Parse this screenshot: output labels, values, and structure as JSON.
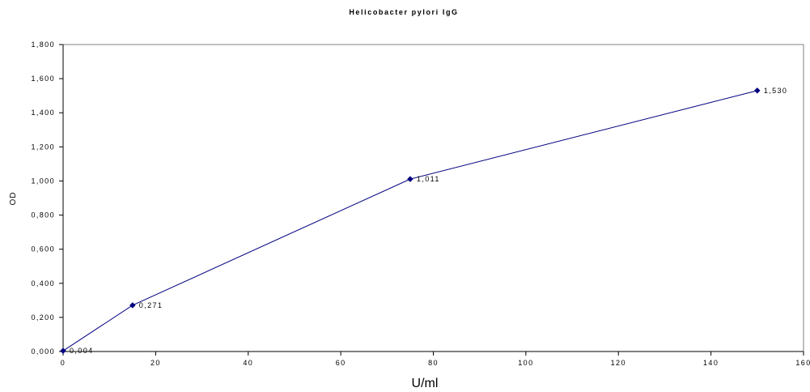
{
  "chart_data": {
    "type": "line",
    "title": "Helicobacter pylori IgG",
    "xlabel": "U/ml",
    "ylabel": "OD",
    "xlim": [
      0,
      160
    ],
    "ylim": [
      0,
      1.8
    ],
    "x_ticks": [
      0,
      20,
      40,
      60,
      80,
      100,
      120,
      140,
      160
    ],
    "x_tick_labels": [
      "0",
      "20",
      "40",
      "60",
      "80",
      "100",
      "120",
      "140",
      "160"
    ],
    "y_ticks": [
      0,
      0.2,
      0.4,
      0.6,
      0.8,
      1.0,
      1.2,
      1.4,
      1.6,
      1.8
    ],
    "y_tick_labels": [
      "0,000",
      "0,200",
      "0,400",
      "0,600",
      "0,800",
      "1,000",
      "1,200",
      "1,400",
      "1,600",
      "1,800"
    ],
    "grid": false,
    "series": [
      {
        "x": [
          0,
          15,
          75,
          150
        ],
        "y": [
          0.004,
          0.271,
          1.011,
          1.53
        ],
        "data_labels": [
          "0,004",
          "0,271",
          "1,011",
          "1,530"
        ],
        "color": "#000080"
      }
    ]
  }
}
